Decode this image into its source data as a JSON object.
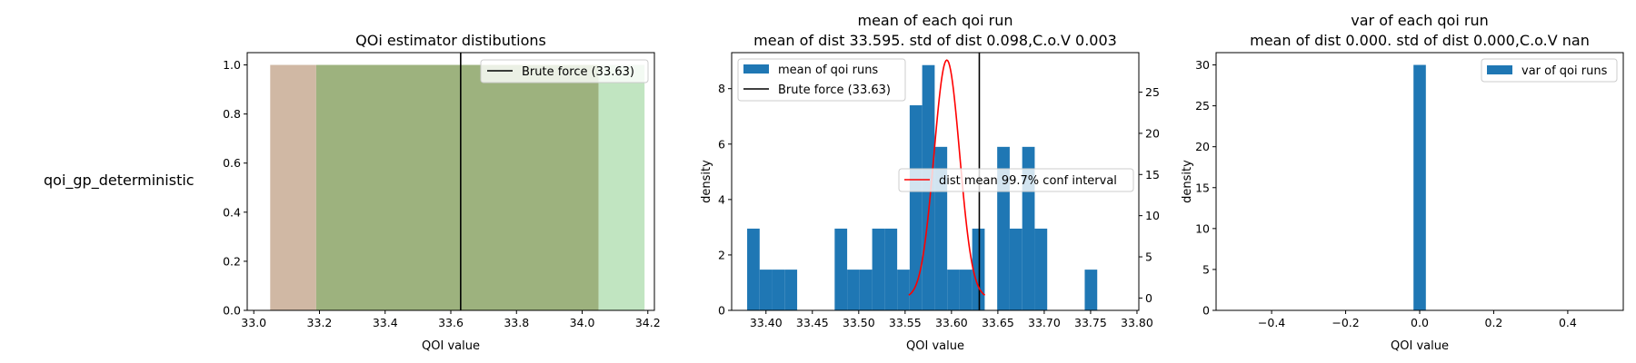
{
  "row_label": "qoi_gp_deterministic",
  "colors": {
    "bar": "#1f77b4",
    "red": "#ff0000",
    "black": "#000000",
    "tan": "#d0b8a4",
    "olive": "#9db27e",
    "light_green": "#c1e5c1"
  },
  "chart_data": [
    {
      "type": "area",
      "title": "QOi estimator distibutions",
      "xlabel": "QOI value",
      "ylabel": "",
      "xlim": [
        32.98,
        34.22
      ],
      "ylim": [
        0,
        1.05
      ],
      "xticks": [
        33.0,
        33.2,
        33.4,
        33.6,
        33.8,
        34.0,
        34.2
      ],
      "xtick_labels": [
        "33.0",
        "33.2",
        "33.4",
        "33.6",
        "33.8",
        "34.0",
        "34.2"
      ],
      "yticks": [
        0,
        0.2,
        0.4,
        0.6,
        0.8,
        1.0
      ],
      "ytick_labels": [
        "0.0",
        "0.2",
        "0.4",
        "0.6",
        "0.8",
        "1.0"
      ],
      "bands": [
        {
          "x0": 33.05,
          "x1": 33.19,
          "height": 1.0,
          "color": "#d0b8a4"
        },
        {
          "x0": 33.19,
          "x1": 34.05,
          "height": 1.0,
          "color": "#9db27e"
        },
        {
          "x0": 34.05,
          "x1": 34.19,
          "height": 1.0,
          "color": "#c1e5c1"
        }
      ],
      "vline": {
        "x": 33.63,
        "label": "Brute force (33.63)"
      },
      "legend_position": "upper right"
    },
    {
      "type": "bar",
      "title": "mean of each qoi run",
      "subtitle": "mean of dist 33.595. std of dist 0.098,C.o.V 0.003",
      "xlabel": "QOI value",
      "ylabel": "density",
      "xlim": [
        33.363,
        33.802
      ],
      "ylim": [
        0,
        9.3
      ],
      "y2lim": [
        -1.5,
        29.8
      ],
      "xticks": [
        33.4,
        33.45,
        33.5,
        33.55,
        33.6,
        33.65,
        33.7,
        33.75,
        33.8
      ],
      "xtick_labels": [
        "33.40",
        "33.45",
        "33.50",
        "33.55",
        "33.60",
        "33.65",
        "33.70",
        "33.75",
        "33.80"
      ],
      "yticks": [
        0,
        2,
        4,
        6,
        8
      ],
      "ytick_labels": [
        "0",
        "2",
        "4",
        "6",
        "8"
      ],
      "y2ticks": [
        0,
        5,
        10,
        15,
        20,
        25
      ],
      "y2tick_labels": [
        "0",
        "5",
        "10",
        "15",
        "20",
        "25"
      ],
      "bin_start": 33.3797,
      "bin_width": 0.01348,
      "values": [
        2.95,
        1.47,
        1.47,
        1.47,
        0,
        0,
        0,
        2.95,
        1.47,
        1.47,
        2.95,
        2.95,
        1.47,
        7.4,
        8.85,
        5.9,
        1.47,
        1.47,
        2.95,
        0,
        5.9,
        2.95,
        5.9,
        2.95,
        0,
        0,
        0,
        1.47
      ],
      "bar_series_name": "mean of qoi runs",
      "vline": {
        "x": 33.63,
        "label": "Brute force (33.63)"
      },
      "ci_curve": {
        "name": "dist mean 99.7% conf interval",
        "mean": 33.595,
        "sigma": 0.0138,
        "peak": 28.9,
        "x_range": [
          33.554,
          33.636
        ]
      },
      "legend_position": "upper left"
    },
    {
      "type": "bar",
      "title": "var of each qoi run",
      "subtitle": "mean of dist 0.000. std of dist 0.000,C.o.V nan",
      "xlabel": "QOI value",
      "ylabel": "density",
      "xlim": [
        -0.55,
        0.55
      ],
      "ylim": [
        0,
        31.5
      ],
      "xticks": [
        -0.4,
        -0.2,
        0.0,
        0.2,
        0.4
      ],
      "xtick_labels": [
        "−0.4",
        "−0.2",
        "0.0",
        "0.2",
        "0.4"
      ],
      "yticks": [
        0,
        5,
        10,
        15,
        20,
        25,
        30
      ],
      "ytick_labels": [
        "0",
        "5",
        "10",
        "15",
        "20",
        "25",
        "30"
      ],
      "bars": [
        {
          "x0": -0.0167,
          "x1": 0.0167,
          "value": 30
        }
      ],
      "bar_series_name": "var of qoi runs",
      "legend_position": "upper right"
    }
  ]
}
